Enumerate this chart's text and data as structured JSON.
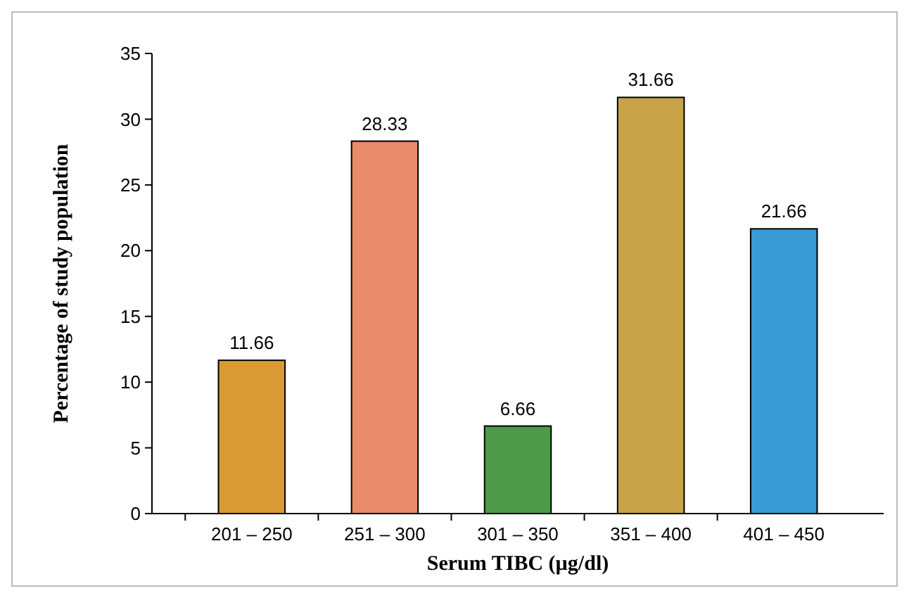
{
  "chart_data": {
    "type": "bar",
    "xlabel": "Serum TIBC (µg/dl)",
    "ylabel": "Percentage of study population",
    "categories": [
      "201 – 250",
      "251 – 300",
      "301 – 350",
      "351 – 400",
      "401 – 450"
    ],
    "values": [
      11.66,
      28.33,
      6.66,
      31.66,
      21.66
    ],
    "colors": [
      "#d99a35",
      "#e98a6a",
      "#4d9a4a",
      "#c9a347",
      "#3a9ad4"
    ],
    "ylim": [
      0,
      35
    ],
    "yticks": [
      0,
      5,
      10,
      15,
      20,
      25,
      30,
      35
    ],
    "grid": false,
    "data_labels": true
  }
}
